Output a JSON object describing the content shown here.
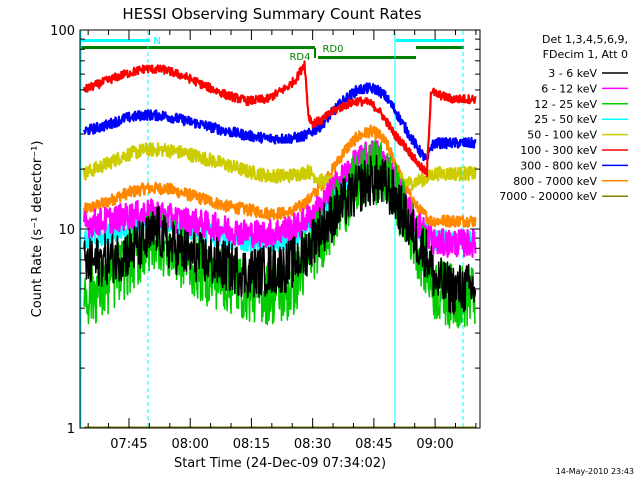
{
  "chart_data": {
    "type": "line",
    "title": "HESSI Observing Summary Count Rates",
    "xlabel": "Start Time (24-Dec-09 07:34:02)",
    "ylabel": "Count Rate (s⁻¹ detector⁻¹)",
    "yscale": "log",
    "ylim": [
      1,
      100
    ],
    "xlim_minutes": [
      -1,
      97
    ],
    "x_ticks": [
      {
        "minute": 11,
        "label": "07:45"
      },
      {
        "minute": 26,
        "label": "08:00"
      },
      {
        "minute": 41,
        "label": "08:15"
      },
      {
        "minute": 56,
        "label": "08:30"
      },
      {
        "minute": 71,
        "label": "08:45"
      },
      {
        "minute": 86,
        "label": "09:00"
      }
    ],
    "y_ticks": [
      {
        "value": 1,
        "label": "1"
      },
      {
        "value": 10,
        "label": "10"
      },
      {
        "value": 100,
        "label": "100"
      }
    ],
    "legend_header": [
      "Det 1,3,4,5,6,9,",
      "FDecim 1, Att 0"
    ],
    "legend_placement": "right",
    "series": [
      {
        "name": "3 - 6 keV",
        "color": "#000000",
        "x": [
          0,
          5,
          10,
          15,
          18,
          20,
          25,
          30,
          35,
          40,
          45,
          50,
          52,
          54,
          55,
          57,
          60,
          63,
          66,
          68,
          70,
          72,
          74,
          76,
          78,
          80,
          82,
          84,
          85,
          86,
          90,
          96
        ],
        "y": [
          6.5,
          7,
          7.5,
          8.5,
          10,
          8.5,
          7.5,
          7,
          6.5,
          6,
          6.2,
          6.5,
          7,
          7.5,
          8,
          9.5,
          11,
          13,
          15,
          16.5,
          17.5,
          17.5,
          16.5,
          14.5,
          12,
          10,
          8.5,
          7.5,
          6.5,
          5.5,
          5,
          5
        ]
      },
      {
        "name": "6 - 12 keV",
        "color": "#ff00ff",
        "x": [
          0,
          5,
          10,
          15,
          18,
          20,
          25,
          30,
          35,
          40,
          45,
          50,
          53,
          55,
          58,
          61,
          64,
          67,
          70,
          72,
          74,
          76,
          78,
          80,
          82,
          84,
          85,
          86,
          90,
          96
        ],
        "y": [
          10.5,
          11,
          11.5,
          12,
          12,
          11.5,
          11,
          10.5,
          10,
          9.5,
          9.5,
          10,
          10.5,
          11.5,
          13,
          16,
          19,
          22,
          24,
          24,
          21.5,
          18,
          14.5,
          12,
          10.5,
          9.5,
          9,
          8.5,
          8.5,
          8.5
        ]
      },
      {
        "name": "12 - 25 keV",
        "color": "#00cc00",
        "x": [
          0,
          5,
          10,
          15,
          18,
          20,
          25,
          30,
          35,
          40,
          45,
          50,
          53,
          55,
          58,
          61,
          64,
          67,
          70,
          72,
          74,
          76,
          78,
          80,
          82,
          84,
          85,
          86,
          90,
          96
        ],
        "y": [
          4.7,
          5,
          6.5,
          8,
          9.5,
          8,
          7,
          6,
          5.5,
          5,
          4.8,
          4.8,
          6,
          7.5,
          9,
          11.5,
          14,
          17,
          19,
          19.5,
          18,
          15.5,
          12.5,
          10,
          8,
          6.5,
          5.5,
          5,
          4.6,
          4.6
        ]
      },
      {
        "name": "25 - 50 keV",
        "color": "#00ffff",
        "x": [
          0,
          5,
          10,
          15,
          18,
          20,
          25,
          30,
          35,
          40,
          45,
          50,
          53,
          55,
          58,
          61,
          64,
          67,
          70,
          72,
          74,
          76,
          78,
          80,
          82,
          84,
          85,
          86,
          90,
          96
        ],
        "y": [
          8.7,
          9.2,
          10,
          11,
          11.5,
          10.8,
          10,
          9.5,
          9,
          8.5,
          8.5,
          8.8,
          9.5,
          10.5,
          12,
          14.5,
          17,
          19.5,
          21,
          21,
          19,
          16,
          13,
          11,
          10,
          9.3,
          9,
          8.8,
          8.7,
          8.7
        ]
      },
      {
        "name": "50 - 100 keV",
        "color": "#cccc00",
        "x": [
          0,
          5,
          10,
          15,
          20,
          25,
          30,
          35,
          40,
          45,
          50,
          53,
          55,
          58,
          61,
          64,
          67,
          70,
          72,
          74,
          76,
          78,
          80,
          82,
          84,
          85,
          86,
          90,
          96
        ],
        "y": [
          19,
          21,
          23.5,
          25,
          25,
          24,
          22.5,
          21,
          19.5,
          18.5,
          18.5,
          19,
          19.5,
          17.5,
          17,
          18,
          20,
          22,
          22.5,
          21,
          18.5,
          17.5,
          17,
          17.5,
          18,
          18.5,
          19,
          19,
          19
        ]
      },
      {
        "name": "100 - 300 keV",
        "color": "#ff0000",
        "x": [
          0,
          5,
          10,
          15,
          20,
          25,
          30,
          35,
          40,
          45,
          50,
          52,
          53,
          54,
          55,
          56,
          58,
          61,
          64,
          67,
          70,
          72,
          74,
          76,
          78,
          80,
          82,
          84,
          85,
          86,
          90,
          96
        ],
        "y": [
          50,
          55,
          60,
          64,
          63,
          58,
          52,
          47,
          44,
          45,
          52,
          57,
          62,
          68,
          37,
          34,
          35,
          39,
          42,
          44,
          43,
          40,
          35,
          30,
          27,
          24,
          21,
          19,
          50,
          48,
          45,
          45
        ]
      },
      {
        "name": "300 - 800 keV",
        "color": "#0000ff",
        "x": [
          0,
          5,
          10,
          15,
          20,
          25,
          30,
          35,
          40,
          45,
          50,
          53,
          55,
          58,
          61,
          64,
          67,
          70,
          72,
          74,
          76,
          78,
          80,
          82,
          84,
          85,
          86,
          90,
          96
        ],
        "y": [
          31,
          33,
          36,
          37.5,
          37,
          35,
          33,
          31,
          29.5,
          28.5,
          28.5,
          29,
          30,
          33,
          39,
          45,
          50,
          51,
          50,
          46,
          40,
          34,
          29,
          25,
          22,
          26,
          27,
          27,
          27
        ]
      },
      {
        "name": "800 - 7000 keV",
        "color": "#ff8800",
        "x": [
          0,
          5,
          10,
          15,
          20,
          25,
          30,
          35,
          40,
          45,
          50,
          53,
          55,
          58,
          61,
          64,
          67,
          70,
          72,
          74,
          76,
          78,
          80,
          82,
          84,
          85,
          86,
          90,
          96
        ],
        "y": [
          12.5,
          13.5,
          15,
          16,
          16,
          15,
          14,
          13,
          12.5,
          12,
          12,
          13,
          14,
          16.5,
          20,
          25,
          29,
          31,
          30,
          27,
          22,
          17.5,
          14.5,
          12.5,
          11.5,
          11,
          11,
          11,
          11
        ]
      },
      {
        "name": "7000 - 20000 keV",
        "color": "#808000",
        "x": [
          0,
          96
        ],
        "y": [
          1,
          1
        ]
      }
    ],
    "annotations": [
      {
        "text": "N",
        "color": "#00ffff"
      },
      {
        "text": "RD4",
        "color": "#008000"
      },
      {
        "text": "RD0",
        "color": "#008000"
      }
    ]
  },
  "timestamp": "14-May-2010 23:43"
}
